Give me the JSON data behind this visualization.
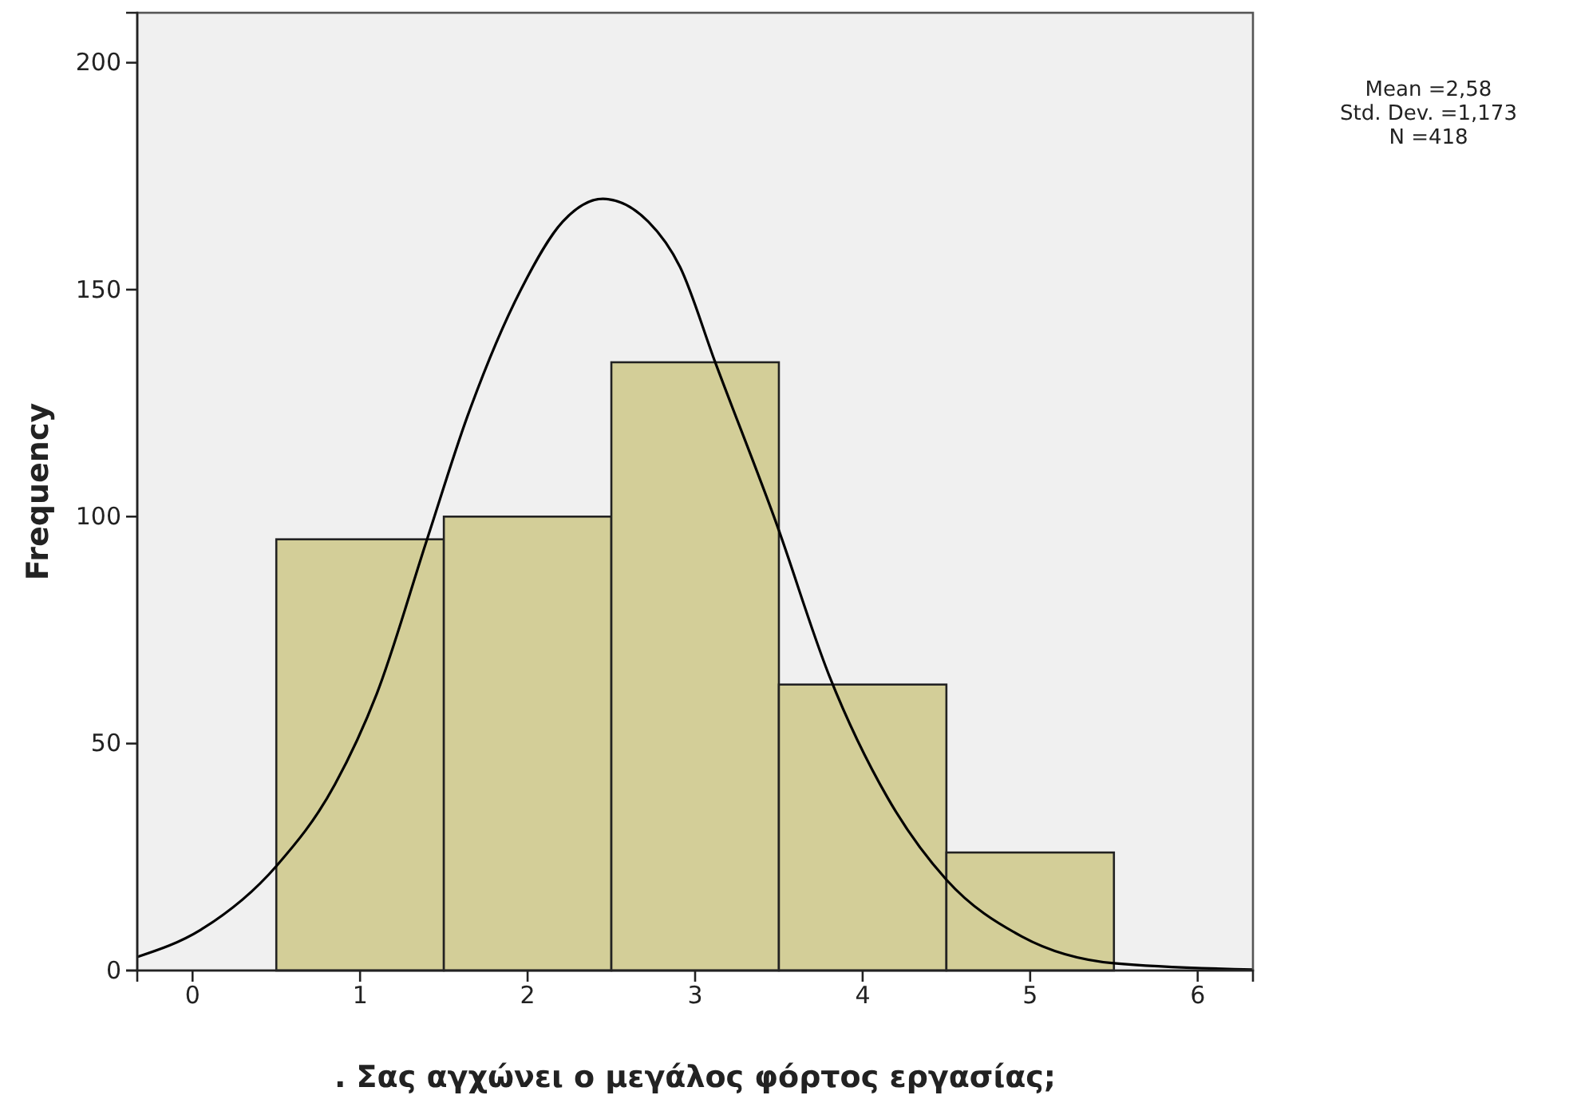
{
  "chart_data": {
    "type": "histogram",
    "xlabel": ". Σας αγχώνει ο μεγάλος φόρτος εργασίας;",
    "ylabel": "Frequency",
    "annotations": [
      "Mean =2,58",
      "Std. Dev. =1,173",
      "N =418"
    ],
    "bins": [
      0.5,
      1.5,
      2.5,
      3.5,
      4.5,
      5.5
    ],
    "series": [
      {
        "color": "#d3ce98",
        "values": [
          95,
          100,
          134,
          63,
          26
        ]
      },
      {
        "type": "line",
        "color": "#000000",
        "x": [
          -0.33,
          0.05,
          0.5,
          0.85,
          1.1,
          1.4,
          1.64,
          1.96,
          2.21,
          2.45,
          2.72,
          2.91,
          3.12,
          3.49,
          3.8,
          4.15,
          4.5,
          4.95,
          5.5,
          6.33
        ],
        "values": [
          3,
          9,
          23,
          41,
          61,
          95,
          122,
          150,
          165,
          170,
          165,
          155,
          134,
          98,
          65,
          38,
          20,
          7.5,
          1.6,
          0.2
        ]
      }
    ],
    "xlim": [
      -0.33,
      6.33
    ],
    "xticks": [
      0,
      1,
      2,
      3,
      4,
      5,
      6
    ],
    "ylim": [
      0,
      211
    ],
    "yticks": [
      0,
      50,
      100,
      150,
      200
    ],
    "grid": false,
    "marker": "none",
    "line_style": "solid"
  }
}
